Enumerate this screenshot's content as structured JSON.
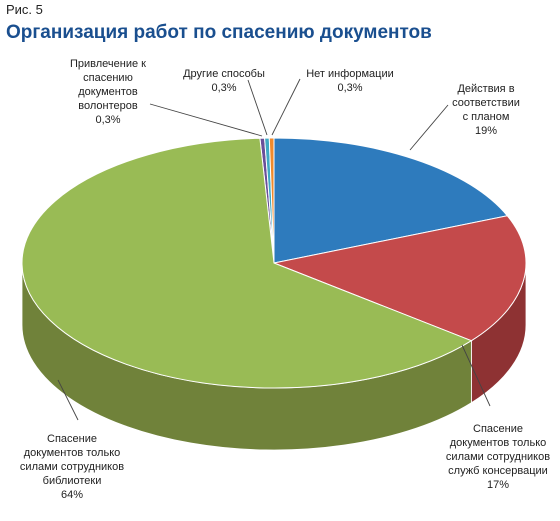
{
  "figure": {
    "label": "Рис. 5"
  },
  "title": "Организация работ по спасению документов",
  "chart_data": {
    "type": "pie",
    "style": "3d",
    "slices": [
      {
        "lines": [
          "Действия в",
          "соответствии",
          "с планом"
        ],
        "value": 19,
        "value_label": "19%",
        "color": "#2e7bbd",
        "side_color": "#1d5a8c"
      },
      {
        "lines": [
          "Спасение",
          "документов только",
          "силами сотрудников",
          "служб консервации"
        ],
        "value": 17,
        "value_label": "17%",
        "color": "#c44a4b",
        "side_color": "#8e3233"
      },
      {
        "lines": [
          "Спасение",
          "документов только",
          "силами сотрудников",
          "библиотеки"
        ],
        "value": 64,
        "value_label": "64%",
        "color": "#99bb55",
        "side_color": "#70823a"
      },
      {
        "lines": [
          "Привлечение к",
          "спасению",
          "документов",
          "волонтеров"
        ],
        "value": 0.3,
        "value_label": "0,3%",
        "color": "#6a4f99",
        "side_color": "#4a3670"
      },
      {
        "lines": [
          "Другие способы"
        ],
        "value": 0.3,
        "value_label": "0,3%",
        "color": "#3fa9c4",
        "side_color": "#2a7a8f"
      },
      {
        "lines": [
          "Нет информации"
        ],
        "value": 0.3,
        "value_label": "0,3%",
        "color": "#f08a2c",
        "side_color": "#b05f18"
      }
    ]
  }
}
